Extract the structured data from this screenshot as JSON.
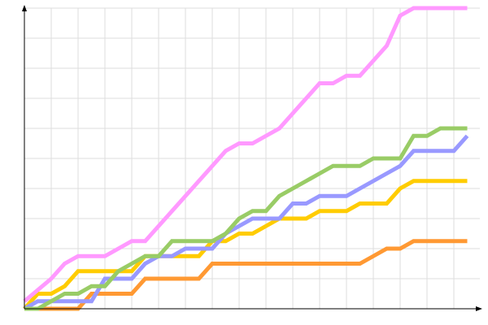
{
  "chart_data": {
    "type": "line",
    "title": "",
    "xlabel": "",
    "ylabel": "",
    "xlim": [
      0,
      33
    ],
    "ylim": [
      0,
      40
    ],
    "grid": true,
    "x_grid_step": 2,
    "y_grid_step": 4,
    "x": [
      0,
      1,
      2,
      3,
      4,
      5,
      6,
      7,
      8,
      9,
      10,
      11,
      12,
      13,
      14,
      15,
      16,
      17,
      18,
      19,
      20,
      21,
      22,
      23,
      24,
      25,
      26,
      27,
      28,
      29,
      30,
      31,
      32,
      33
    ],
    "series": [
      {
        "color": "#ff9933",
        "values": [
          0,
          0,
          0,
          0,
          0,
          2,
          2,
          2,
          2,
          4,
          4,
          4,
          4,
          4,
          6,
          6,
          6,
          6,
          6,
          6,
          6,
          6,
          6,
          6,
          6,
          6,
          7,
          8,
          8,
          9,
          9,
          9,
          9,
          9
        ]
      },
      {
        "color": "#ffcc00",
        "values": [
          0,
          2,
          2,
          3,
          5,
          5,
          5,
          5,
          5,
          7,
          7,
          7,
          7,
          7,
          9,
          9,
          10,
          10,
          11,
          12,
          12,
          12,
          13,
          13,
          13,
          14,
          14,
          14,
          16,
          17,
          17,
          17,
          17,
          17
        ]
      },
      {
        "color": "#9999ff",
        "values": [
          0,
          1,
          1,
          1,
          1,
          1,
          4,
          4,
          4,
          6,
          7,
          7,
          8,
          8,
          8,
          10,
          11,
          12,
          12,
          12,
          14,
          14,
          15,
          15,
          15,
          16,
          17,
          18,
          19,
          21,
          21,
          21,
          21,
          23
        ]
      },
      {
        "color": "#99cc66",
        "values": [
          0,
          0,
          1,
          2,
          2,
          3,
          3,
          5,
          6,
          7,
          7,
          9,
          9,
          9,
          9,
          10,
          12,
          13,
          13,
          15,
          16,
          17,
          18,
          19,
          19,
          19,
          20,
          20,
          20,
          23,
          23,
          24,
          24,
          24
        ]
      },
      {
        "color": "#ff99ff",
        "values": [
          1,
          2.5,
          4,
          6,
          7,
          7,
          7,
          8,
          9,
          9,
          11,
          13,
          15,
          17,
          19,
          21,
          22,
          22,
          23,
          24,
          26,
          28,
          30,
          30,
          31,
          31,
          33,
          35,
          39,
          40,
          40,
          40,
          40,
          40
        ]
      }
    ]
  }
}
